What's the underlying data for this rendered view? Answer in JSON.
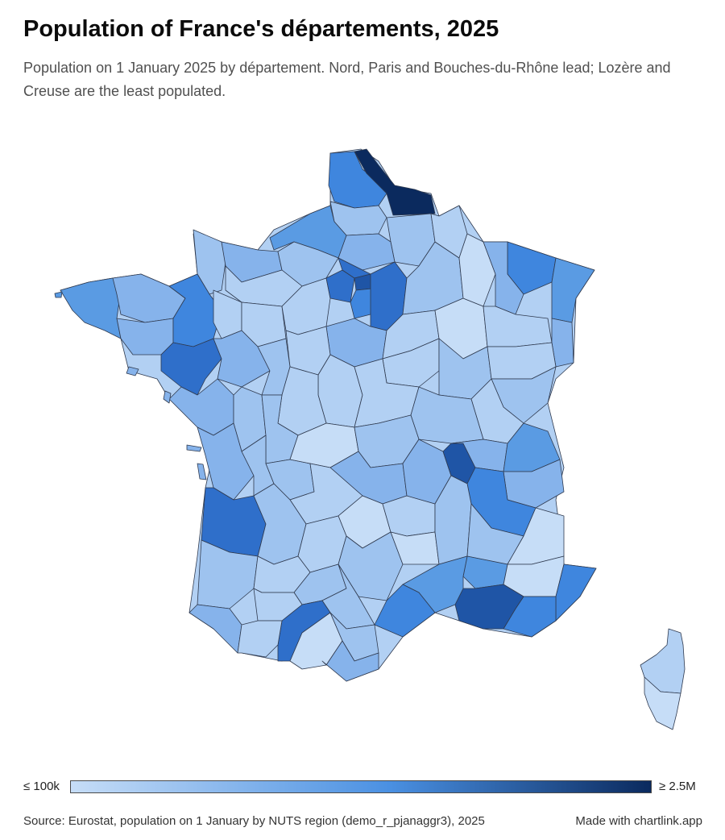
{
  "header": {
    "title": "Population of France's départements, 2025",
    "subtitle": "Population on 1 January 2025 by département. Nord, Paris and Bouches-du-Rhône lead; Lozère and Creuse are the least populated."
  },
  "legend": {
    "min_label": "≤ 100k",
    "max_label": "≥ 2.5M",
    "color_low": "#c6ddf7",
    "color_mid": "#4a90e2",
    "color_high": "#0b2a5e"
  },
  "map": {
    "region": "France (metropolitan départements)",
    "colors": {
      "c1": "#c6ddf7",
      "c2": "#b2d0f3",
      "c3": "#9ec3ef",
      "c4": "#86b3eb",
      "c5": "#5a9be3",
      "c6": "#3f86de",
      "c7": "#2f6fca",
      "c8": "#1f55a6",
      "c9": "#0b2a5e",
      "stroke": "#2f3a4f"
    }
  },
  "footer": {
    "source": "Source: Eurostat, population on 1 January by NUTS region (demo_r_pjanaggr3), 2025",
    "credit": "Made with chartlink.app"
  }
}
